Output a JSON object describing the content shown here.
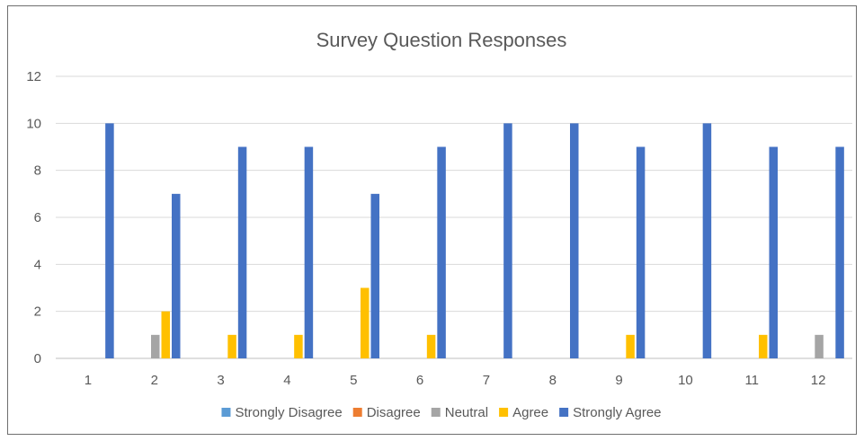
{
  "chart_data": {
    "type": "bar",
    "title": "Survey Question Responses",
    "xlabel": "",
    "ylabel": "",
    "categories": [
      "1",
      "2",
      "3",
      "4",
      "5",
      "6",
      "7",
      "8",
      "9",
      "10",
      "11",
      "12"
    ],
    "ylim": [
      0,
      12
    ],
    "yticks": [
      "0",
      "2",
      "4",
      "6",
      "8",
      "10",
      "12"
    ],
    "grid": true,
    "legend_position": "bottom",
    "series": [
      {
        "name": "Strongly Disagree",
        "color": "#5B9BD5",
        "values": [
          0,
          0,
          0,
          0,
          0,
          0,
          0,
          0,
          0,
          0,
          0,
          0
        ]
      },
      {
        "name": "Disagree",
        "color": "#ED7D31",
        "values": [
          0,
          0,
          0,
          0,
          0,
          0,
          0,
          0,
          0,
          0,
          0,
          0
        ]
      },
      {
        "name": "Neutral",
        "color": "#A5A5A5",
        "values": [
          0,
          1,
          0,
          0,
          0,
          0,
          0,
          0,
          0,
          0,
          0,
          1
        ]
      },
      {
        "name": "Agree",
        "color": "#FFC000",
        "values": [
          0,
          2,
          1,
          1,
          3,
          1,
          0,
          0,
          1,
          0,
          1,
          0
        ]
      },
      {
        "name": "Strongly Agree",
        "color": "#4472C4",
        "values": [
          10,
          7,
          9,
          9,
          7,
          9,
          10,
          10,
          9,
          10,
          9,
          9
        ]
      }
    ]
  }
}
